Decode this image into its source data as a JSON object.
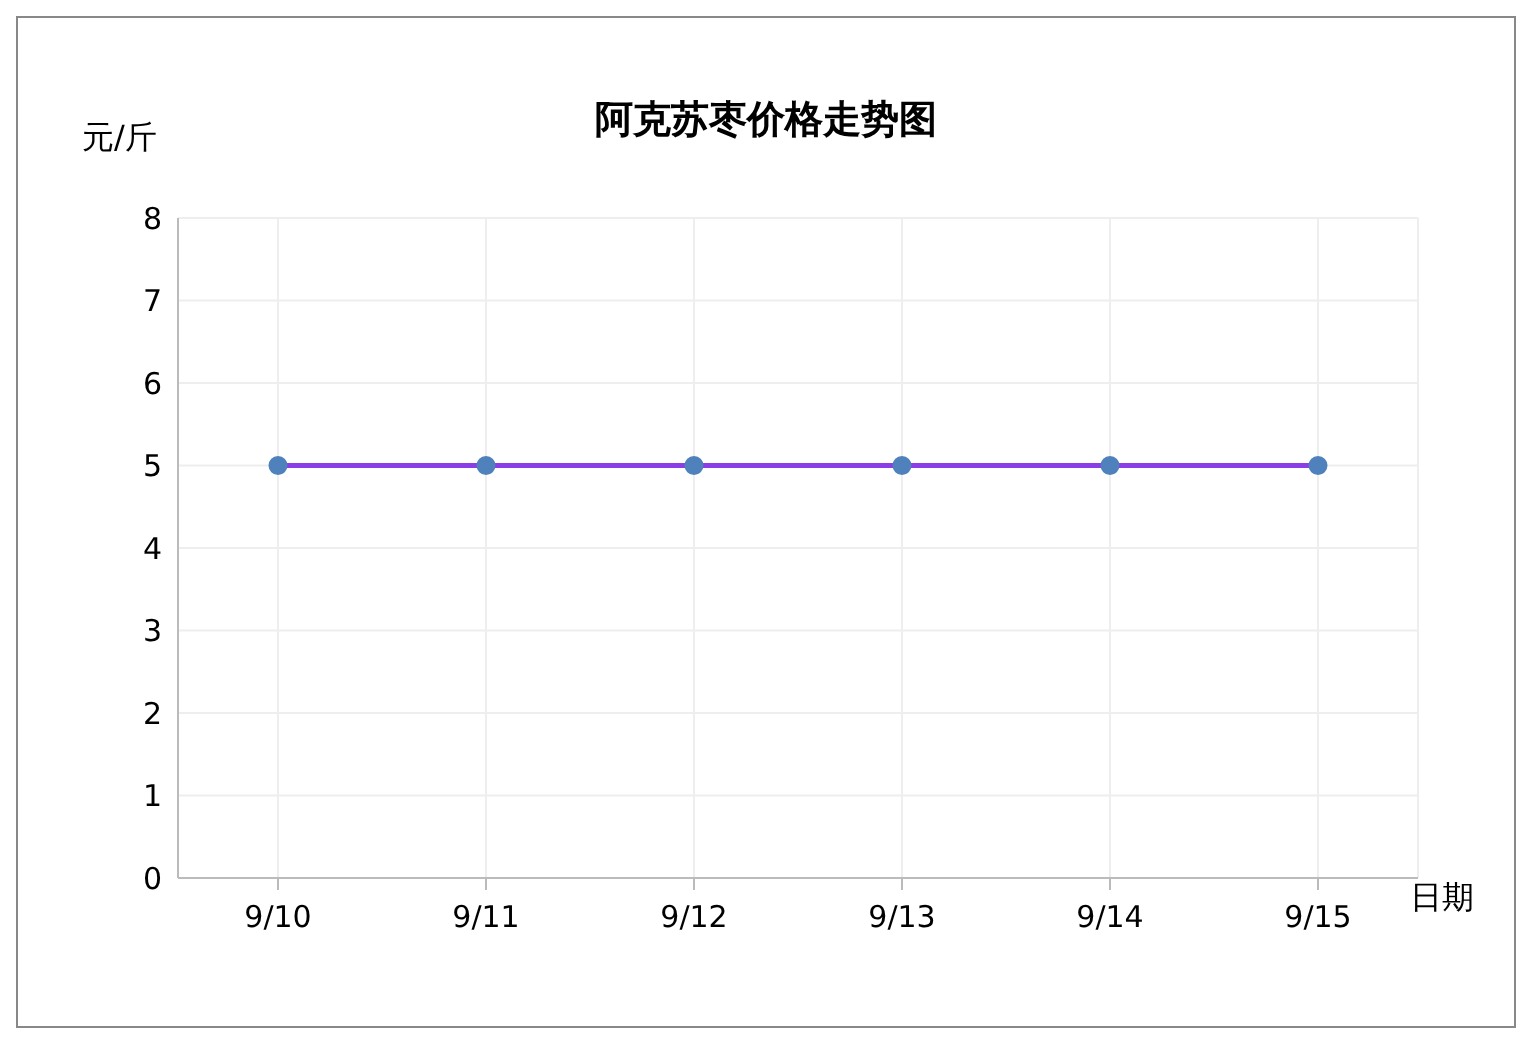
{
  "chart_data": {
    "type": "line",
    "title": "阿克苏枣价格走势图",
    "ylabel": "元/斤",
    "xlabel": "日期",
    "categories": [
      "9/10",
      "9/11",
      "9/12",
      "9/13",
      "9/14",
      "9/15"
    ],
    "series": [
      {
        "color": "#8a3ee6",
        "values": [
          5,
          5,
          5,
          5,
          5,
          5
        ]
      }
    ],
    "ylim": [
      0,
      8
    ],
    "yticks": [
      0,
      1,
      2,
      3,
      4,
      5,
      6,
      7,
      8
    ],
    "grid": true,
    "marker": "circle",
    "line_style": "solid"
  }
}
